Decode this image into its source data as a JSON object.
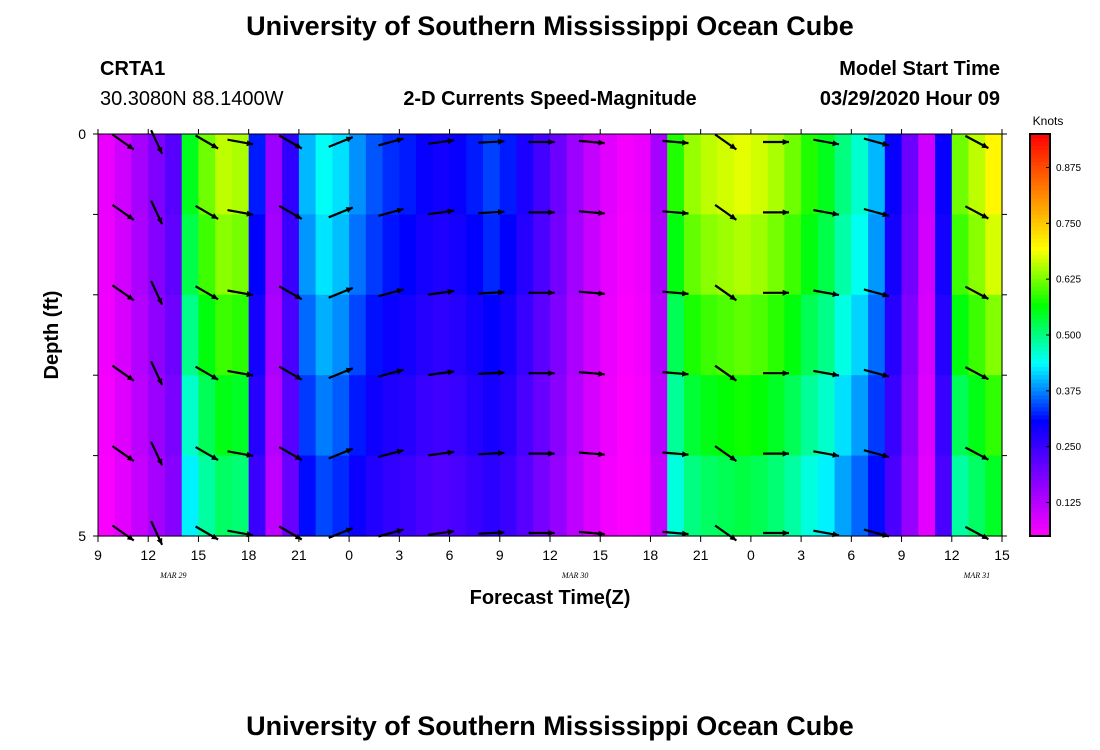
{
  "page": {
    "title_top": "University of Southern Mississippi Ocean Cube",
    "title_bottom": "University of Southern Mississippi Ocean Cube",
    "station": "CRTA1",
    "location": "30.3080N 88.1400W",
    "plot_title": "2-D Currents Speed-Magnitude",
    "model_start_label": "Model Start Time",
    "model_start_value": "03/29/2020 Hour 09"
  },
  "chart_data": {
    "type": "heatmap",
    "title": "2-D Currents Speed-Magnitude",
    "xlabel": "Forecast Time(Z)",
    "ylabel": "Depth (ft)",
    "x_tick_labels": [
      "9",
      "12",
      "15",
      "18",
      "21",
      "0",
      "3",
      "6",
      "9",
      "12",
      "15",
      "18",
      "21",
      "0",
      "3",
      "6",
      "9",
      "12",
      "15"
    ],
    "date_labels": [
      "MAR 29",
      "MAR 30",
      "MAR 31"
    ],
    "y_tick_labels": [
      "0",
      "5"
    ],
    "ylim": [
      0,
      5
    ],
    "colorbar": {
      "label": "Knots",
      "ticks": [
        "0.875",
        "0.750",
        "0.625",
        "0.500",
        "0.375",
        "0.250",
        "0.125"
      ],
      "tick_values": [
        0.875,
        0.75,
        0.625,
        0.5,
        0.375,
        0.25,
        0.125
      ],
      "range": [
        0.05,
        0.95
      ],
      "colors": [
        "#ff00ff",
        "#8000ff",
        "#0000ff",
        "#00ffff",
        "#00ff00",
        "#ffff00",
        "#ff8000",
        "#ff0000"
      ]
    },
    "depth_layers": 5,
    "time_hours": 54,
    "speed_profile_knots": [
      0.07,
      0.1,
      0.14,
      0.18,
      0.22,
      0.55,
      0.62,
      0.66,
      0.65,
      0.32,
      0.15,
      0.26,
      0.4,
      0.44,
      0.42,
      0.38,
      0.35,
      0.33,
      0.32,
      0.3,
      0.29,
      0.3,
      0.32,
      0.34,
      0.32,
      0.28,
      0.24,
      0.2,
      0.15,
      0.11,
      0.08,
      0.06,
      0.07,
      0.14,
      0.58,
      0.64,
      0.66,
      0.67,
      0.68,
      0.67,
      0.65,
      0.62,
      0.58,
      0.55,
      0.5,
      0.46,
      0.4,
      0.3,
      0.2,
      0.1,
      0.3,
      0.62,
      0.66,
      0.7
    ],
    "depth_factor": [
      1.0,
      0.96,
      0.9,
      0.84,
      0.78
    ],
    "arrow_hours": [
      1.5,
      3.5,
      6.5,
      8.5,
      11.5,
      14.5,
      17.5,
      20.5,
      23.5,
      26.5,
      29.5,
      34.5,
      37.5,
      40.5,
      43.5,
      46.5,
      52.5
    ],
    "arrow_direction_deg": [
      -35,
      -65,
      -30,
      -10,
      -30,
      22,
      15,
      8,
      3,
      0,
      -5,
      -5,
      -35,
      0,
      -10,
      -15,
      -28
    ]
  }
}
